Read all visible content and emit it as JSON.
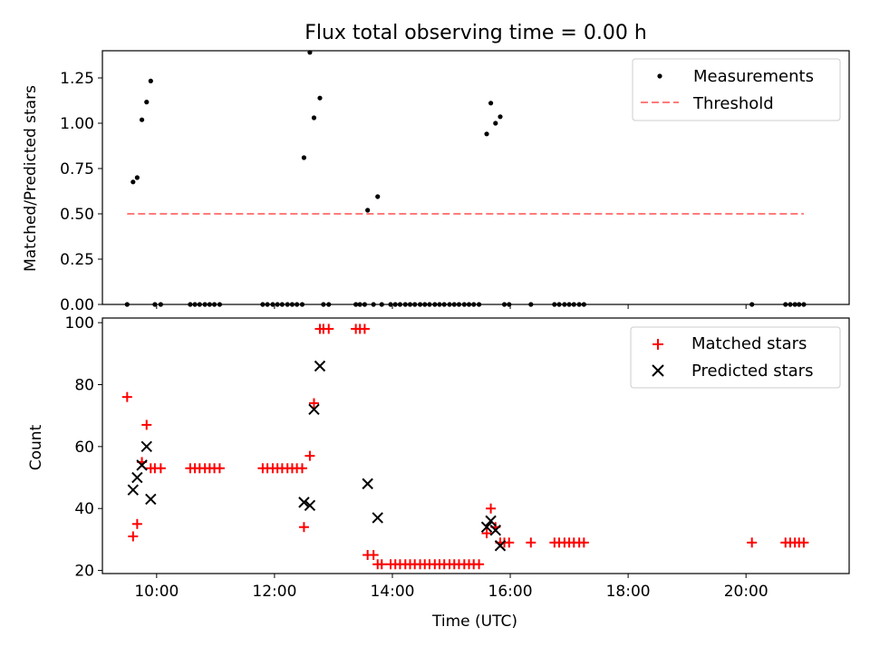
{
  "chart_data": [
    {
      "type": "scatter",
      "title": "Flux total observing time = 0.00 h",
      "xlabel": "",
      "ylabel": "Matched/Predicted stars",
      "xlim": [
        9.08,
        21.75
      ],
      "ylim": [
        0,
        1.4
      ],
      "yticks": [
        0,
        0.25,
        0.5,
        0.75,
        1.0,
        1.25
      ],
      "ytick_labels": [
        "0.00",
        "0.25",
        "0.50",
        "0.75",
        "1.00",
        "1.25"
      ],
      "xticks": [
        10,
        12,
        14,
        16,
        18,
        20
      ],
      "legend": [
        "Measurements",
        "Threshold"
      ],
      "legend_position": "top-right",
      "series": [
        {
          "name": "Measurements",
          "marker": "dot",
          "color": "#000000",
          "points": [
            [
              9.5,
              0
            ],
            [
              9.6,
              0.676
            ],
            [
              9.67,
              0.7
            ],
            [
              9.75,
              1.019
            ],
            [
              9.83,
              1.117
            ],
            [
              9.9,
              1.233
            ],
            [
              9.97,
              0
            ],
            [
              10.07,
              0
            ],
            [
              10.57,
              0
            ],
            [
              10.65,
              0
            ],
            [
              10.73,
              0
            ],
            [
              10.82,
              0
            ],
            [
              10.9,
              0
            ],
            [
              10.98,
              0
            ],
            [
              11.07,
              0
            ],
            [
              11.8,
              0
            ],
            [
              11.88,
              0
            ],
            [
              11.97,
              0
            ],
            [
              12.05,
              0
            ],
            [
              12.13,
              0
            ],
            [
              12.22,
              0
            ],
            [
              12.3,
              0
            ],
            [
              12.38,
              0
            ],
            [
              12.47,
              0
            ],
            [
              12.5,
              0.81
            ],
            [
              12.6,
              1.391
            ],
            [
              12.67,
              1.03
            ],
            [
              12.77,
              1.139
            ],
            [
              12.83,
              0
            ],
            [
              12.92,
              0
            ],
            [
              13.38,
              0
            ],
            [
              13.45,
              0
            ],
            [
              13.53,
              0
            ],
            [
              13.58,
              0.52
            ],
            [
              13.68,
              0
            ],
            [
              13.75,
              0.595
            ],
            [
              13.82,
              0
            ],
            [
              13.97,
              0
            ],
            [
              14.05,
              0
            ],
            [
              14.13,
              0
            ],
            [
              14.22,
              0
            ],
            [
              14.3,
              0
            ],
            [
              14.38,
              0
            ],
            [
              14.47,
              0
            ],
            [
              14.55,
              0
            ],
            [
              14.63,
              0
            ],
            [
              14.72,
              0
            ],
            [
              14.8,
              0
            ],
            [
              14.88,
              0
            ],
            [
              14.97,
              0
            ],
            [
              15.05,
              0
            ],
            [
              15.13,
              0
            ],
            [
              15.22,
              0
            ],
            [
              15.3,
              0
            ],
            [
              15.38,
              0
            ],
            [
              15.47,
              0
            ],
            [
              15.6,
              0.941
            ],
            [
              15.67,
              1.111
            ],
            [
              15.75,
              1.0
            ],
            [
              15.83,
              1.036
            ],
            [
              15.9,
              0
            ],
            [
              15.98,
              0
            ],
            [
              16.35,
              0
            ],
            [
              16.75,
              0
            ],
            [
              16.83,
              0
            ],
            [
              16.92,
              0
            ],
            [
              17.0,
              0
            ],
            [
              17.08,
              0
            ],
            [
              17.17,
              0
            ],
            [
              17.25,
              0
            ],
            [
              20.1,
              0
            ],
            [
              20.67,
              0
            ],
            [
              20.75,
              0
            ],
            [
              20.83,
              0
            ],
            [
              20.9,
              0
            ],
            [
              20.98,
              0
            ]
          ]
        },
        {
          "name": "Threshold",
          "style": "dashed",
          "color": "#ff7b7b",
          "x": [
            9.5,
            20.98
          ],
          "y": [
            0.5,
            0.5
          ]
        }
      ]
    },
    {
      "type": "scatter",
      "title": "",
      "xlabel": "Time (UTC)",
      "ylabel": "Count",
      "xlim": [
        9.08,
        21.75
      ],
      "ylim": [
        19,
        101.5
      ],
      "yticks": [
        20,
        40,
        60,
        80,
        100
      ],
      "ytick_labels": [
        "20",
        "40",
        "60",
        "80",
        "100"
      ],
      "xticks": [
        10,
        12,
        14,
        16,
        18,
        20
      ],
      "xtick_labels": [
        "10:00",
        "12:00",
        "14:00",
        "16:00",
        "18:00",
        "20:00"
      ],
      "legend": [
        "Matched stars",
        "Predicted stars"
      ],
      "legend_position": "top-right",
      "series": [
        {
          "name": "Matched stars",
          "marker": "plus",
          "color": "#ff0000",
          "points": [
            [
              9.5,
              76
            ],
            [
              9.6,
              31
            ],
            [
              9.67,
              35
            ],
            [
              9.75,
              55
            ],
            [
              9.83,
              67
            ],
            [
              9.9,
              53
            ],
            [
              9.97,
              53
            ],
            [
              10.07,
              53
            ],
            [
              10.57,
              53
            ],
            [
              10.65,
              53
            ],
            [
              10.73,
              53
            ],
            [
              10.82,
              53
            ],
            [
              10.9,
              53
            ],
            [
              10.98,
              53
            ],
            [
              11.07,
              53
            ],
            [
              11.8,
              53
            ],
            [
              11.88,
              53
            ],
            [
              11.97,
              53
            ],
            [
              12.05,
              53
            ],
            [
              12.13,
              53
            ],
            [
              12.22,
              53
            ],
            [
              12.3,
              53
            ],
            [
              12.38,
              53
            ],
            [
              12.47,
              53
            ],
            [
              12.5,
              34
            ],
            [
              12.6,
              57
            ],
            [
              12.67,
              74
            ],
            [
              12.77,
              98
            ],
            [
              12.83,
              98
            ],
            [
              12.92,
              98
            ],
            [
              13.38,
              98
            ],
            [
              13.45,
              98
            ],
            [
              13.53,
              98
            ],
            [
              13.58,
              25
            ],
            [
              13.68,
              25
            ],
            [
              13.75,
              22
            ],
            [
              13.82,
              22
            ],
            [
              13.97,
              22
            ],
            [
              14.05,
              22
            ],
            [
              14.13,
              22
            ],
            [
              14.22,
              22
            ],
            [
              14.3,
              22
            ],
            [
              14.38,
              22
            ],
            [
              14.47,
              22
            ],
            [
              14.55,
              22
            ],
            [
              14.63,
              22
            ],
            [
              14.72,
              22
            ],
            [
              14.8,
              22
            ],
            [
              14.88,
              22
            ],
            [
              14.97,
              22
            ],
            [
              15.05,
              22
            ],
            [
              15.13,
              22
            ],
            [
              15.22,
              22
            ],
            [
              15.3,
              22
            ],
            [
              15.38,
              22
            ],
            [
              15.47,
              22
            ],
            [
              15.6,
              32
            ],
            [
              15.67,
              40
            ],
            [
              15.75,
              34
            ],
            [
              15.83,
              29
            ],
            [
              15.9,
              29
            ],
            [
              15.98,
              29
            ],
            [
              16.35,
              29
            ],
            [
              16.75,
              29
            ],
            [
              16.83,
              29
            ],
            [
              16.92,
              29
            ],
            [
              17.0,
              29
            ],
            [
              17.08,
              29
            ],
            [
              17.17,
              29
            ],
            [
              17.25,
              29
            ],
            [
              20.1,
              29
            ],
            [
              20.67,
              29
            ],
            [
              20.75,
              29
            ],
            [
              20.83,
              29
            ],
            [
              20.9,
              29
            ],
            [
              20.98,
              29
            ]
          ]
        },
        {
          "name": "Predicted stars",
          "marker": "x",
          "color": "#000000",
          "points": [
            [
              9.6,
              46
            ],
            [
              9.67,
              50
            ],
            [
              9.75,
              54
            ],
            [
              9.83,
              60
            ],
            [
              9.9,
              43
            ],
            [
              12.5,
              42
            ],
            [
              12.6,
              41
            ],
            [
              12.67,
              72
            ],
            [
              12.77,
              86
            ],
            [
              13.58,
              48
            ],
            [
              13.75,
              37
            ],
            [
              15.6,
              34
            ],
            [
              15.67,
              36
            ],
            [
              15.75,
              33
            ],
            [
              15.83,
              28
            ]
          ]
        }
      ]
    }
  ]
}
